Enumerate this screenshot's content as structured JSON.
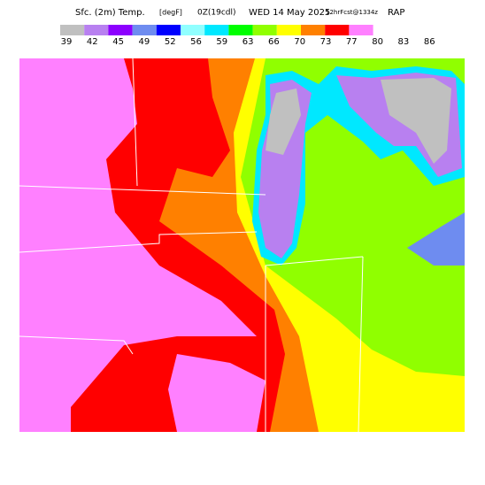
{
  "header": {
    "title": "Sfc. (2m) Temp.",
    "units": "[degF]",
    "init": "0Z(19cdl)",
    "date": "WED 14 May 2025",
    "forecast": "12hrFcst@1334z",
    "model": "RAP"
  },
  "colorbar": {
    "labels": [
      "39",
      "42",
      "45",
      "49",
      "52",
      "56",
      "59",
      "63",
      "66",
      "70",
      "73",
      "77",
      "80",
      "83",
      "86"
    ],
    "colors": [
      "#c0c0c0",
      "#b880f0",
      "#8c00ff",
      "#6e8cf0",
      "#0000ff",
      "#90ffff",
      "#00e8ff",
      "#00ff00",
      "#90ff00",
      "#ffff00",
      "#ff8000",
      "#ff0000",
      "#ff80ff"
    ]
  }
}
